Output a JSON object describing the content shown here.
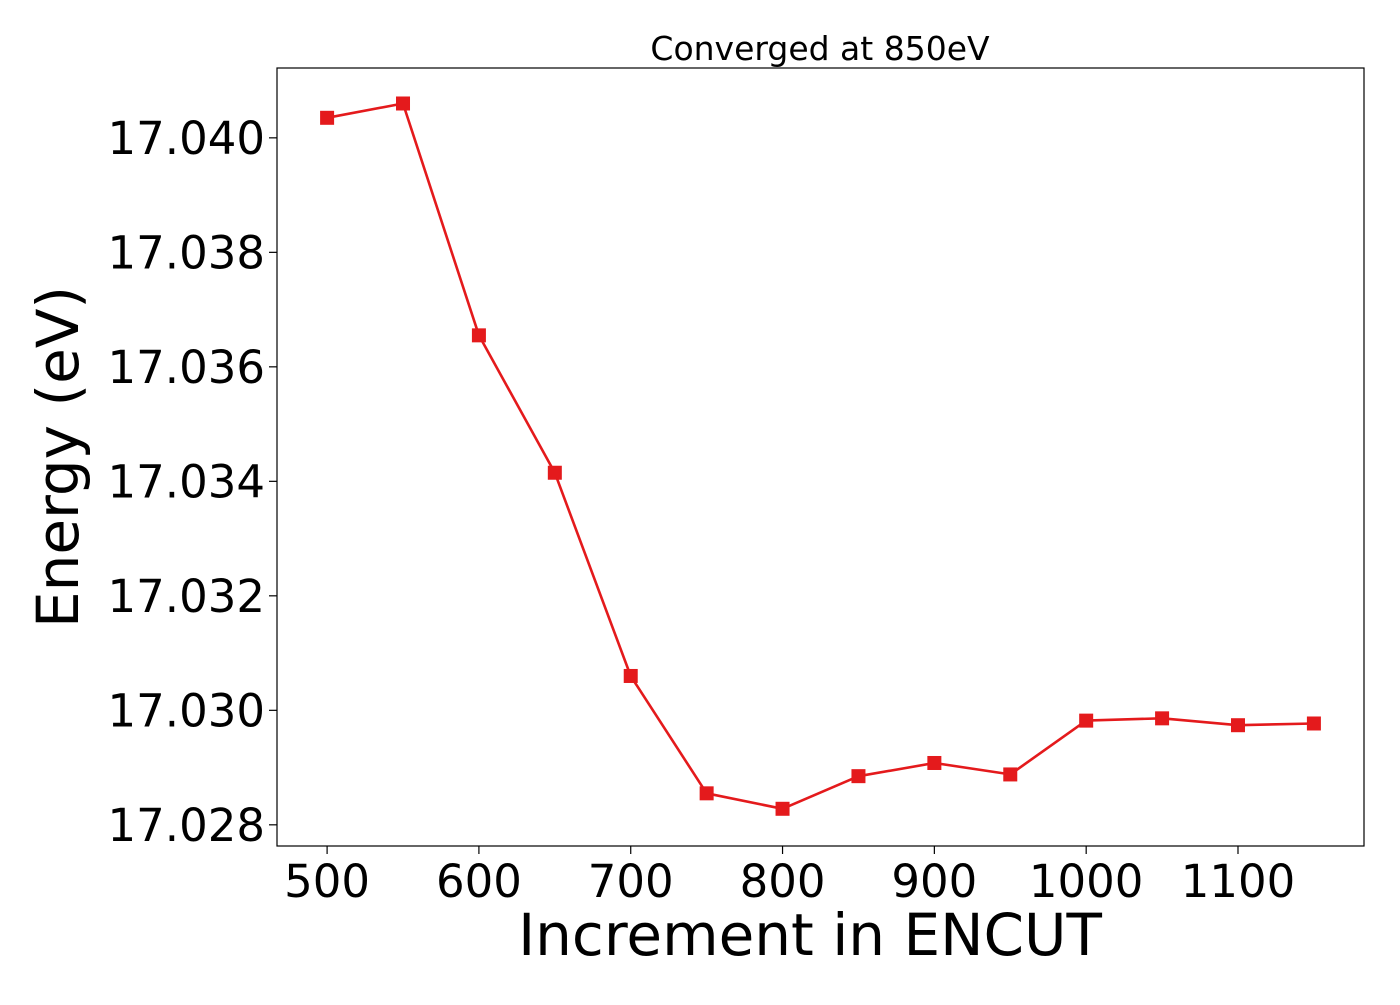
{
  "chart_data": {
    "type": "line",
    "title": "Converged at 850eV",
    "xlabel": "Increment in ENCUT",
    "ylabel": "Energy (eV)",
    "x": [
      500,
      550,
      600,
      650,
      700,
      750,
      800,
      850,
      900,
      950,
      1000,
      1050,
      1100,
      1150
    ],
    "series": [
      {
        "values": [
          17.04035,
          17.0406,
          17.03655,
          17.03415,
          17.0306,
          17.02855,
          17.02828,
          17.02885,
          17.02908,
          17.02888,
          17.02982,
          17.02986,
          17.02974,
          17.02977
        ],
        "color": "#e41a1c",
        "marker": "square"
      }
    ],
    "xlim": [
      467,
      1183
    ],
    "ylim": [
      17.02763,
      17.04122
    ],
    "xticks": [
      500,
      600,
      700,
      800,
      900,
      1000,
      1100
    ],
    "yticks": [
      17.028,
      17.03,
      17.032,
      17.034,
      17.036,
      17.038,
      17.04
    ],
    "ytick_decimals": 3,
    "grid": false,
    "legend": "none"
  }
}
